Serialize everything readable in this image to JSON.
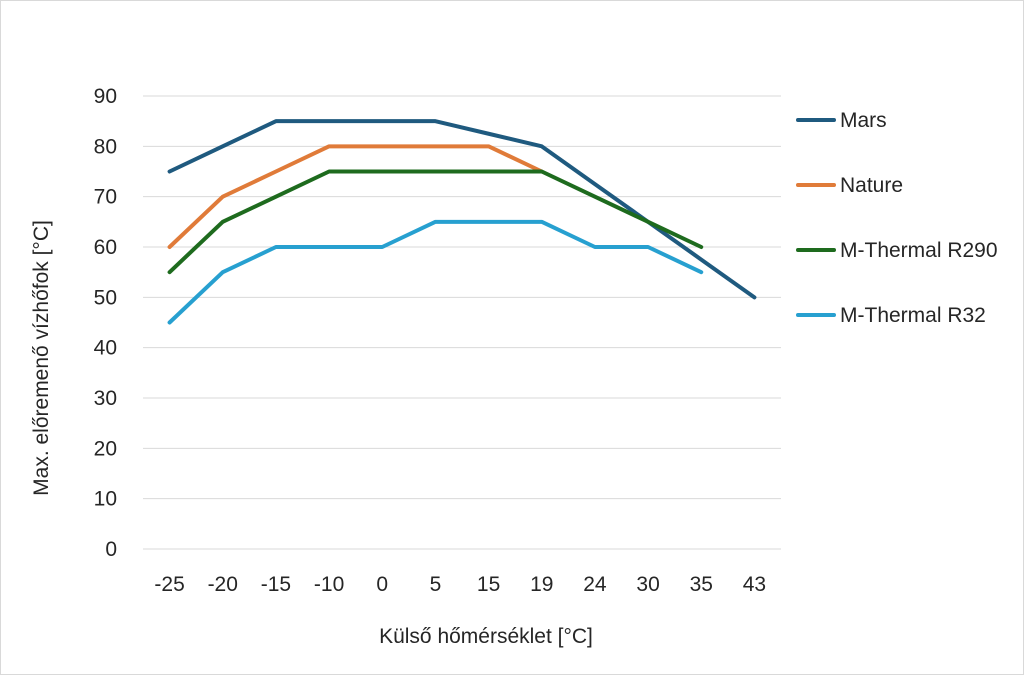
{
  "chart_data": {
    "type": "line",
    "title": "",
    "xlabel": "Külső hőmérséklet [°C]",
    "ylabel": "Max. előremenő vízhőfok [°C]",
    "categories": [
      "-25",
      "-20",
      "-15",
      "-10",
      "0",
      "5",
      "15",
      "19",
      "24",
      "30",
      "35",
      "43"
    ],
    "ylim": [
      0,
      90
    ],
    "yticks": [
      0,
      10,
      20,
      30,
      40,
      50,
      60,
      70,
      80,
      90
    ],
    "grid": true,
    "legend_position": "right",
    "series": [
      {
        "name": "Mars",
        "color": "#1f5a7f",
        "values": [
          75,
          80,
          85,
          85,
          85,
          85,
          82.5,
          80,
          72.5,
          65,
          57.5,
          50
        ]
      },
      {
        "name": "Nature",
        "color": "#e07b39",
        "values": [
          60,
          70,
          75,
          80,
          80,
          80,
          80,
          75,
          null,
          null,
          null,
          null
        ]
      },
      {
        "name": "M-Thermal R290",
        "color": "#1e6b1e",
        "values": [
          55,
          65,
          70,
          75,
          75,
          75,
          75,
          75,
          70,
          65,
          60,
          null
        ]
      },
      {
        "name": "M-Thermal R32",
        "color": "#27a0d0",
        "values": [
          45,
          55,
          60,
          60,
          60,
          65,
          65,
          65,
          60,
          60,
          55,
          null
        ]
      }
    ]
  }
}
